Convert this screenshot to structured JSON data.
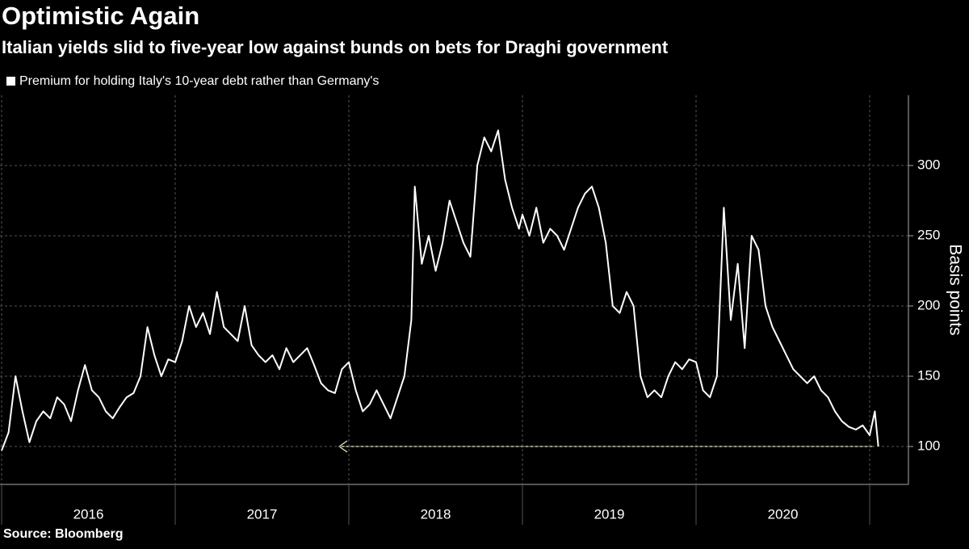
{
  "chart_data": {
    "type": "line",
    "title": "Optimistic Again",
    "subtitle": "Italian yields slid to five-year low against bunds on bets for Draghi government",
    "source": "Source: Bloomberg",
    "y_label": "Basis points",
    "categories": [
      "2016",
      "2017",
      "2018",
      "2019",
      "2020"
    ],
    "xgrid": [
      2016,
      2017,
      2018,
      2019,
      2020,
      2021
    ],
    "xlim": [
      2016,
      2021.2
    ],
    "ylim": [
      73,
      350
    ],
    "yticks": [
      100,
      150,
      200,
      250,
      300
    ],
    "grid": true,
    "x": [
      2016.0,
      2016.04,
      2016.08,
      2016.12,
      2016.16,
      2016.2,
      2016.24,
      2016.28,
      2016.32,
      2016.36,
      2016.4,
      2016.44,
      2016.48,
      2016.52,
      2016.56,
      2016.6,
      2016.64,
      2016.68,
      2016.72,
      2016.76,
      2016.8,
      2016.84,
      2016.88,
      2016.92,
      2016.96,
      2017.0,
      2017.04,
      2017.08,
      2017.12,
      2017.16,
      2017.2,
      2017.24,
      2017.28,
      2017.32,
      2017.36,
      2017.4,
      2017.44,
      2017.48,
      2017.52,
      2017.56,
      2017.6,
      2017.64,
      2017.68,
      2017.72,
      2017.76,
      2017.8,
      2017.84,
      2017.88,
      2017.92,
      2017.96,
      2018.0,
      2018.04,
      2018.08,
      2018.12,
      2018.16,
      2018.2,
      2018.24,
      2018.28,
      2018.32,
      2018.36,
      2018.38,
      2018.42,
      2018.46,
      2018.5,
      2018.54,
      2018.58,
      2018.62,
      2018.66,
      2018.7,
      2018.74,
      2018.78,
      2018.82,
      2018.86,
      2018.9,
      2018.94,
      2018.98,
      2019.0,
      2019.04,
      2019.08,
      2019.12,
      2019.16,
      2019.2,
      2019.24,
      2019.28,
      2019.32,
      2019.36,
      2019.4,
      2019.44,
      2019.48,
      2019.52,
      2019.56,
      2019.6,
      2019.64,
      2019.68,
      2019.72,
      2019.76,
      2019.8,
      2019.84,
      2019.88,
      2019.92,
      2019.96,
      2020.0,
      2020.04,
      2020.08,
      2020.12,
      2020.16,
      2020.2,
      2020.24,
      2020.28,
      2020.32,
      2020.36,
      2020.4,
      2020.44,
      2020.48,
      2020.52,
      2020.56,
      2020.6,
      2020.64,
      2020.68,
      2020.72,
      2020.76,
      2020.8,
      2020.84,
      2020.88,
      2020.92,
      2020.96,
      2021.0,
      2021.03,
      2021.05
    ],
    "series": [
      {
        "name": "Premium for holding Italy's 10-year debt rather than Germany's",
        "color": "#ffffff",
        "values": [
          97,
          110,
          150,
          125,
          103,
          118,
          125,
          120,
          135,
          130,
          118,
          140,
          158,
          140,
          135,
          125,
          120,
          128,
          135,
          138,
          150,
          185,
          165,
          150,
          162,
          160,
          175,
          200,
          185,
          195,
          180,
          210,
          185,
          180,
          175,
          200,
          172,
          165,
          160,
          165,
          155,
          170,
          160,
          165,
          170,
          158,
          145,
          140,
          138,
          155,
          160,
          140,
          125,
          130,
          140,
          130,
          120,
          135,
          150,
          190,
          285,
          230,
          250,
          225,
          245,
          275,
          260,
          245,
          235,
          300,
          320,
          310,
          325,
          290,
          270,
          255,
          265,
          250,
          270,
          245,
          255,
          250,
          240,
          255,
          270,
          280,
          285,
          270,
          245,
          200,
          195,
          210,
          200,
          150,
          135,
          140,
          135,
          150,
          160,
          155,
          162,
          160,
          140,
          135,
          150,
          270,
          190,
          230,
          170,
          250,
          240,
          200,
          185,
          175,
          165,
          155,
          150,
          145,
          150,
          140,
          135,
          125,
          118,
          114,
          112,
          115,
          108,
          125,
          100
        ]
      }
    ]
  }
}
